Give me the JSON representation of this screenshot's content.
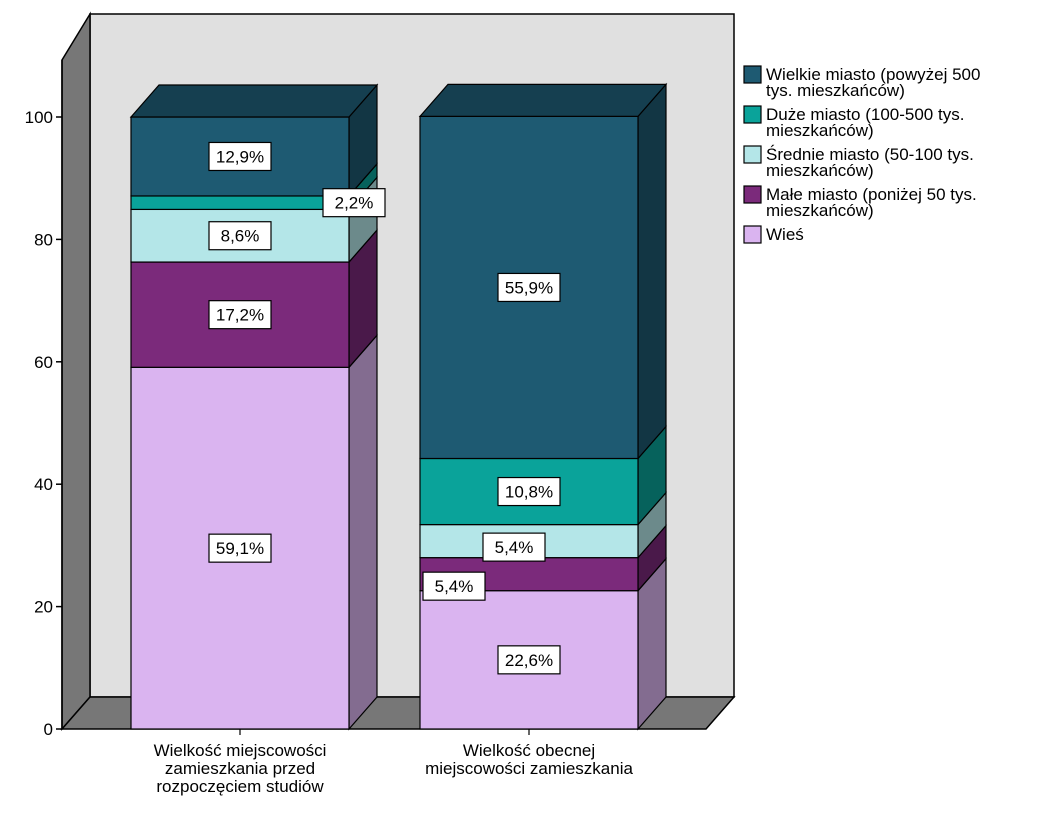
{
  "chart_data": {
    "type": "bar",
    "stacked": true,
    "three_d": true,
    "title": "",
    "xlabel": "",
    "ylabel": "",
    "ylim": [
      0,
      100
    ],
    "yticks": [
      0,
      20,
      40,
      60,
      80,
      100
    ],
    "grid": false,
    "legend_position": "right",
    "categories": [
      [
        "Wielkość miejscowości",
        "zamieszkania przed",
        "rozpoczęciem studiów"
      ],
      [
        "Wielkość obecnej",
        "miejscowości zamieszkania"
      ]
    ],
    "series": [
      {
        "name": "Wieś",
        "color": "#dab4f0",
        "values": [
          59.1,
          22.6
        ],
        "labels": [
          "59,1%",
          "22,6%"
        ]
      },
      {
        "name": "Małe miasto (poniżej 50 tys. mieszkańców)",
        "color": "#7b2a7b",
        "values": [
          17.2,
          5.4
        ],
        "labels": [
          "17,2%",
          "5,4%"
        ]
      },
      {
        "name": "Średnie miasto (50-100 tys. mieszkańców)",
        "color": "#b4e6e8",
        "values": [
          8.6,
          5.4
        ],
        "labels": [
          "8,6%",
          "5,4%"
        ]
      },
      {
        "name": "Duże miasto (100-500 tys. mieszkańców)",
        "color": "#0aa39a",
        "values": [
          2.2,
          10.8
        ],
        "labels": [
          "2,2%",
          "10,8%"
        ]
      },
      {
        "name": "Wielkie miasto (powyżej 500 tys. mieszkańców)",
        "color": "#1e5a72",
        "values": [
          12.9,
          55.9
        ],
        "labels": [
          "12,9%",
          "55,9%"
        ]
      }
    ],
    "legend": [
      {
        "lines": [
          "Wielkie miasto (powyżej 500",
          "tys. mieszkańców)"
        ],
        "color": "#1e5a72"
      },
      {
        "lines": [
          "Duże miasto (100-500 tys.",
          "mieszkańców)"
        ],
        "color": "#0aa39a"
      },
      {
        "lines": [
          "Średnie miasto (50-100 tys.",
          "mieszkańców)"
        ],
        "color": "#b4e6e8"
      },
      {
        "lines": [
          "Małe miasto (poniżej 50 tys.",
          "mieszkańców)"
        ],
        "color": "#7b2a7b"
      },
      {
        "lines": [
          "Wieś"
        ],
        "color": "#dab4f0"
      }
    ],
    "colors": {
      "back_wall": "#e0e0e0",
      "side_wall": "#777777",
      "floor": "#777777"
    }
  }
}
